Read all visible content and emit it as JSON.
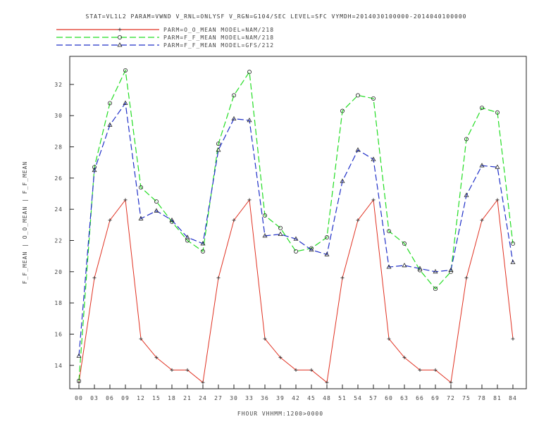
{
  "chart_data": {
    "type": "line",
    "title": "STAT=VL1L2 PARAM=VWND V_RNL=ONLYSF V_RGN=G104/SEC LEVEL=SFC VYMDH=2014030100000-2014040100000",
    "xlabel": "FHOUR VHHMM:1200>0000",
    "ylabel": "F_F_MEAN | O_O_MEAN | F_F_MEAN",
    "categories": [
      "00",
      "03",
      "06",
      "09",
      "12",
      "15",
      "18",
      "21",
      "24",
      "27",
      "30",
      "33",
      "36",
      "39",
      "42",
      "45",
      "48",
      "51",
      "54",
      "57",
      "60",
      "63",
      "66",
      "69",
      "72",
      "75",
      "78",
      "81",
      "84"
    ],
    "ylim": [
      12.5,
      33.8
    ],
    "yticks": [
      14,
      16,
      18,
      20,
      22,
      24,
      26,
      28,
      30,
      32
    ],
    "grid": false,
    "legend_position": "top-left",
    "series": [
      {
        "name": "PARM=O_O_MEAN MODEL=NAM/218",
        "color": "#e03020",
        "dash": "solid",
        "marker": "plus",
        "values": [
          12.9,
          19.6,
          23.3,
          24.6,
          15.7,
          14.5,
          13.7,
          13.7,
          12.9,
          19.6,
          23.3,
          24.6,
          15.7,
          14.5,
          13.7,
          13.7,
          12.9,
          19.6,
          23.3,
          24.6,
          15.7,
          14.5,
          13.7,
          13.7,
          12.9,
          19.6,
          23.3,
          24.6,
          15.7
        ]
      },
      {
        "name": "PARM=F_F_MEAN MODEL=NAM/218",
        "color": "#22dd22",
        "dash": "long",
        "marker": "circle",
        "values": [
          13.0,
          26.7,
          30.8,
          32.9,
          25.4,
          24.5,
          23.2,
          22.0,
          21.3,
          28.2,
          31.3,
          32.8,
          23.6,
          22.8,
          21.3,
          21.5,
          22.2,
          30.3,
          31.3,
          31.1,
          22.6,
          21.8,
          20.1,
          18.9,
          20.0,
          28.5,
          30.5,
          30.2,
          21.8
        ]
      },
      {
        "name": "PARM=F_F_MEAN MODEL=GFS/212",
        "color": "#2030c8",
        "dash": "long",
        "marker": "triangle",
        "values": [
          14.6,
          26.5,
          29.4,
          30.8,
          23.4,
          23.9,
          23.3,
          22.2,
          21.8,
          27.8,
          29.8,
          29.7,
          22.3,
          22.4,
          22.1,
          21.4,
          21.1,
          25.8,
          27.8,
          27.2,
          20.3,
          20.4,
          20.2,
          20.0,
          20.1,
          24.9,
          26.8,
          26.7,
          20.6
        ]
      }
    ]
  }
}
